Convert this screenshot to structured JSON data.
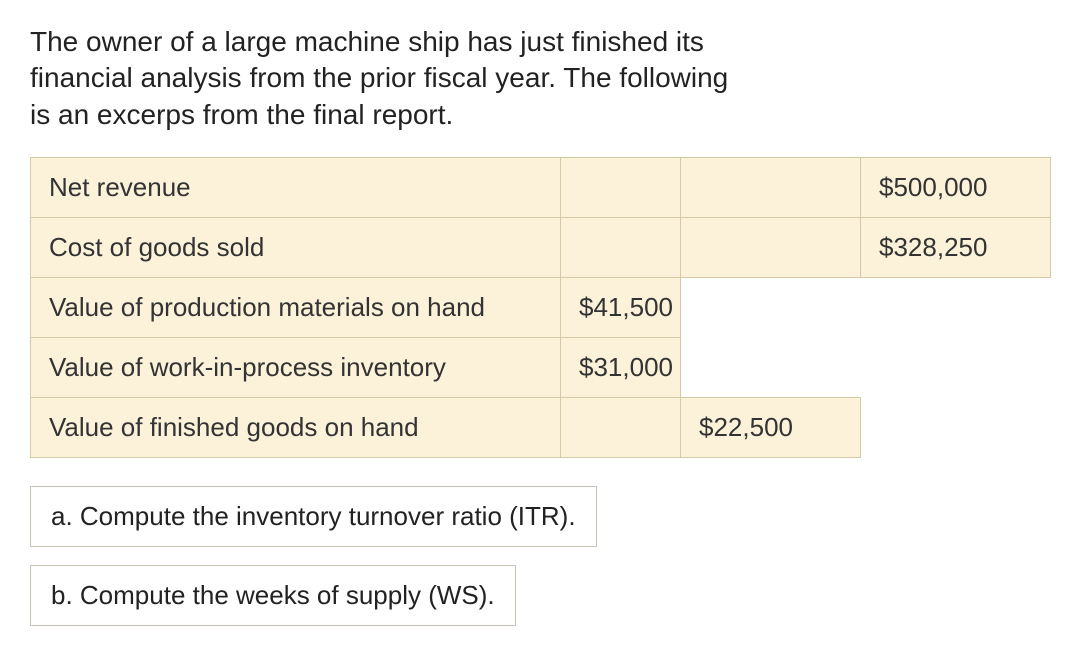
{
  "intro": "The owner of a large machine ship has just finished its financial analysis from the prior fiscal year. The following is an excerps from the final report.",
  "rows": [
    {
      "label": "Net revenue",
      "c2": "",
      "c3": "",
      "c4": "$500,000"
    },
    {
      "label": "Cost of goods sold",
      "c2": "",
      "c3": "",
      "c4": "$328,250"
    },
    {
      "label": "Value of production materials on hand",
      "c2": "$41,500",
      "c3": "",
      "c4": ""
    },
    {
      "label": "Value of work-in-process inventory",
      "c2": "$31,000",
      "c3": "",
      "c4": ""
    },
    {
      "label": "Value of finished goods on hand",
      "c2": "",
      "c3": "$22,500",
      "c4": ""
    }
  ],
  "questions": {
    "a": "a. Compute the inventory turnover ratio (ITR).",
    "b": "b. Compute the weeks of supply (WS)."
  },
  "colors": {
    "cell_bg": "#fcf2d9",
    "cell_border": "#d8c9a6",
    "question_border": "#c9c3b6",
    "text": "#333333"
  }
}
